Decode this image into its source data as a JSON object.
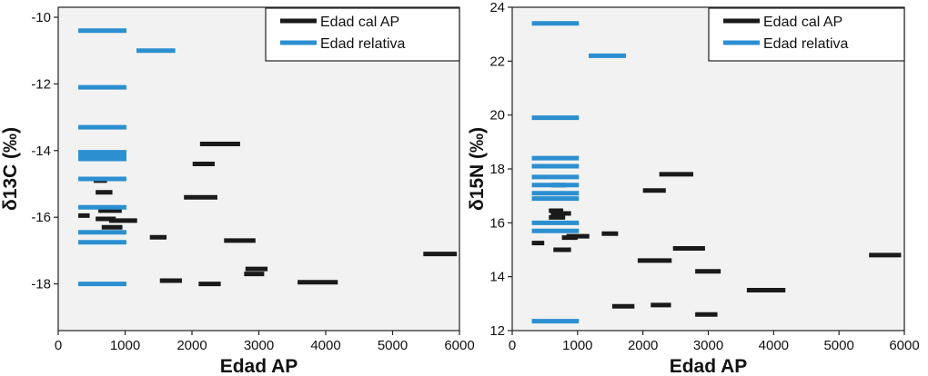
{
  "chart_data": [
    {
      "type": "scatter",
      "marker": "horizontal-bar",
      "title": "",
      "xlabel": "Edad AP",
      "ylabel": "δ13C (‰)",
      "xlim": [
        0,
        6000
      ],
      "ylim": [
        -19.4,
        -9.7
      ],
      "xticks": [
        "0",
        "1000",
        "2000",
        "3000",
        "4000",
        "5000",
        "6000"
      ],
      "yticks": [
        "-10",
        "-12",
        "-14",
        "-16",
        "-18"
      ],
      "ytick_values": [
        -10,
        -12,
        -14,
        -16,
        -18
      ],
      "xtick_values": [
        0,
        1000,
        2000,
        3000,
        4000,
        5000,
        6000
      ],
      "grid": false,
      "legend_position": "top-right",
      "series": [
        {
          "name": "Edad cal AP",
          "color": "#1a1a1a",
          "segments": [
            {
              "x0": 300,
              "x1": 470,
              "y": -15.95
            },
            {
              "x0": 530,
              "x1": 730,
              "y": -14.9
            },
            {
              "x0": 560,
              "x1": 810,
              "y": -15.25
            },
            {
              "x0": 600,
              "x1": 950,
              "y": -15.8
            },
            {
              "x0": 560,
              "x1": 860,
              "y": -16.05
            },
            {
              "x0": 650,
              "x1": 960,
              "y": -16.3
            },
            {
              "x0": 760,
              "x1": 1180,
              "y": -16.1
            },
            {
              "x0": 1370,
              "x1": 1620,
              "y": -16.6
            },
            {
              "x0": 1520,
              "x1": 1850,
              "y": -17.9
            },
            {
              "x0": 1880,
              "x1": 2380,
              "y": -15.4
            },
            {
              "x0": 2010,
              "x1": 2340,
              "y": -14.4
            },
            {
              "x0": 2120,
              "x1": 2720,
              "y": -13.8
            },
            {
              "x0": 2100,
              "x1": 2430,
              "y": -18.0
            },
            {
              "x0": 2480,
              "x1": 2950,
              "y": -16.7
            },
            {
              "x0": 2800,
              "x1": 3130,
              "y": -17.55
            },
            {
              "x0": 2780,
              "x1": 3080,
              "y": -17.7
            },
            {
              "x0": 3580,
              "x1": 4180,
              "y": -17.95
            },
            {
              "x0": 5460,
              "x1": 5960,
              "y": -17.1
            }
          ]
        },
        {
          "name": "Edad relativa",
          "color": "#2b8fd0",
          "segments": [
            {
              "x0": 300,
              "x1": 1020,
              "y": -10.4
            },
            {
              "x0": 1170,
              "x1": 1750,
              "y": -11.0
            },
            {
              "x0": 300,
              "x1": 1020,
              "y": -12.1
            },
            {
              "x0": 300,
              "x1": 1020,
              "y": -13.3
            },
            {
              "x0": 300,
              "x1": 1020,
              "y": -14.05
            },
            {
              "x0": 300,
              "x1": 1020,
              "y": -14.15
            },
            {
              "x0": 300,
              "x1": 1020,
              "y": -14.25
            },
            {
              "x0": 300,
              "x1": 1020,
              "y": -14.85
            },
            {
              "x0": 300,
              "x1": 1020,
              "y": -15.7
            },
            {
              "x0": 300,
              "x1": 1020,
              "y": -16.45
            },
            {
              "x0": 300,
              "x1": 1020,
              "y": -16.75
            },
            {
              "x0": 300,
              "x1": 1020,
              "y": -18.0
            }
          ]
        }
      ]
    },
    {
      "type": "scatter",
      "marker": "horizontal-bar",
      "title": "",
      "xlabel": "Edad AP",
      "ylabel": "δ15N (‰)",
      "xlim": [
        0,
        6000
      ],
      "ylim": [
        12,
        24
      ],
      "xticks": [
        "0",
        "1000",
        "2000",
        "3000",
        "4000",
        "5000",
        "6000"
      ],
      "yticks": [
        "12",
        "14",
        "16",
        "18",
        "20",
        "22",
        "24"
      ],
      "ytick_values": [
        12,
        14,
        16,
        18,
        20,
        22,
        24
      ],
      "xtick_values": [
        0,
        1000,
        2000,
        3000,
        4000,
        5000,
        6000
      ],
      "grid": false,
      "legend_position": "top-right",
      "series": [
        {
          "name": "Edad cal AP",
          "color": "#1a1a1a",
          "segments": [
            {
              "x0": 300,
              "x1": 490,
              "y": 15.25
            },
            {
              "x0": 600,
              "x1": 820,
              "y": 17.4
            },
            {
              "x0": 560,
              "x1": 780,
              "y": 16.45
            },
            {
              "x0": 590,
              "x1": 900,
              "y": 16.35
            },
            {
              "x0": 560,
              "x1": 810,
              "y": 16.2
            },
            {
              "x0": 760,
              "x1": 1000,
              "y": 15.45
            },
            {
              "x0": 830,
              "x1": 1180,
              "y": 15.5
            },
            {
              "x0": 630,
              "x1": 900,
              "y": 15.0
            },
            {
              "x0": 1370,
              "x1": 1620,
              "y": 15.6
            },
            {
              "x0": 1530,
              "x1": 1870,
              "y": 12.9
            },
            {
              "x0": 1920,
              "x1": 2440,
              "y": 14.6
            },
            {
              "x0": 2000,
              "x1": 2350,
              "y": 17.2
            },
            {
              "x0": 2120,
              "x1": 2430,
              "y": 12.95
            },
            {
              "x0": 2250,
              "x1": 2770,
              "y": 17.8
            },
            {
              "x0": 2460,
              "x1": 2950,
              "y": 15.05
            },
            {
              "x0": 2800,
              "x1": 3190,
              "y": 14.2
            },
            {
              "x0": 2800,
              "x1": 3140,
              "y": 12.6
            },
            {
              "x0": 3590,
              "x1": 4180,
              "y": 13.5
            },
            {
              "x0": 5460,
              "x1": 5950,
              "y": 14.8
            }
          ]
        },
        {
          "name": "Edad relativa",
          "color": "#2b8fd0",
          "segments": [
            {
              "x0": 300,
              "x1": 1020,
              "y": 23.4
            },
            {
              "x0": 1170,
              "x1": 1740,
              "y": 22.2
            },
            {
              "x0": 300,
              "x1": 1020,
              "y": 19.9
            },
            {
              "x0": 300,
              "x1": 1020,
              "y": 18.4
            },
            {
              "x0": 300,
              "x1": 1020,
              "y": 18.1
            },
            {
              "x0": 300,
              "x1": 1020,
              "y": 17.7
            },
            {
              "x0": 300,
              "x1": 1020,
              "y": 17.4
            },
            {
              "x0": 300,
              "x1": 1020,
              "y": 17.1
            },
            {
              "x0": 300,
              "x1": 1020,
              "y": 16.9
            },
            {
              "x0": 300,
              "x1": 1020,
              "y": 16.0
            },
            {
              "x0": 300,
              "x1": 1020,
              "y": 15.7
            },
            {
              "x0": 300,
              "x1": 1020,
              "y": 12.35
            }
          ]
        }
      ]
    }
  ]
}
